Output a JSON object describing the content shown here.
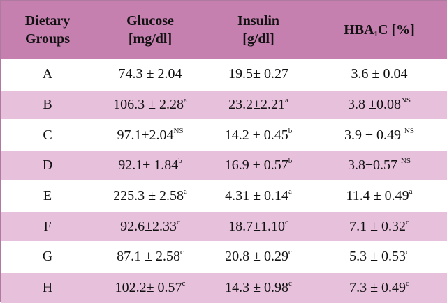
{
  "header": {
    "col0": {
      "line1": "Dietary",
      "line2": "Groups"
    },
    "col1": {
      "line1": "Glucose",
      "line2": "[mg/dl]"
    },
    "col2": {
      "line1": "Insulin",
      "line2": "[g/dl]"
    },
    "col3": {
      "pre": "HBA",
      "sub": "1",
      "post": "C [%]"
    }
  },
  "rows": [
    {
      "group": "A",
      "glucose": "74.3 ± 2.04",
      "glucose_sup": "",
      "insulin": "19.5± 0.27",
      "insulin_sup": "",
      "hba1c": "3.6 ± 0.04",
      "hba1c_sup": ""
    },
    {
      "group": "B",
      "glucose": "106.3 ± 2.28",
      "glucose_sup": "a",
      "insulin": "23.2±2.21",
      "insulin_sup": "a",
      "hba1c": "3.8 ±0.08",
      "hba1c_sup": "NS"
    },
    {
      "group": "C",
      "glucose": "97.1±2.04",
      "glucose_sup": "NS",
      "insulin": "14.2 ± 0.45",
      "insulin_sup": "b",
      "hba1c": "3.9 ± 0.49 ",
      "hba1c_sup": "NS"
    },
    {
      "group": "D",
      "glucose": "92.1± 1.84",
      "glucose_sup": "b",
      "insulin": "16.9 ± 0.57",
      "insulin_sup": "b",
      "hba1c": "3.8±0.57 ",
      "hba1c_sup": "NS"
    },
    {
      "group": "E",
      "glucose": "225.3 ± 2.58",
      "glucose_sup": "a",
      "insulin": "4.31 ± 0.14",
      "insulin_sup": "a",
      "hba1c": "11.4 ± 0.49",
      "hba1c_sup": "a"
    },
    {
      "group": "F",
      "glucose": "92.6±2.33",
      "glucose_sup": "c",
      "insulin": "18.7±1.10",
      "insulin_sup": "c",
      "hba1c": "7.1 ± 0.32",
      "hba1c_sup": "c"
    },
    {
      "group": "G",
      "glucose": "87.1 ± 2.58",
      "glucose_sup": "c",
      "insulin": "20.8 ± 0.29",
      "insulin_sup": "c",
      "hba1c": "5.3 ± 0.53",
      "hba1c_sup": "c"
    },
    {
      "group": "H",
      "glucose": "102.2± 0.57",
      "glucose_sup": "c",
      "insulin": "14.3 ± 0.98",
      "insulin_sup": "c",
      "hba1c": "7.3 ± 0.49",
      "hba1c_sup": "c"
    }
  ],
  "colors": {
    "header_bg": "#c580b0",
    "row_alt_bg": "#e7c1dc",
    "row_bg": "#ffffff"
  }
}
